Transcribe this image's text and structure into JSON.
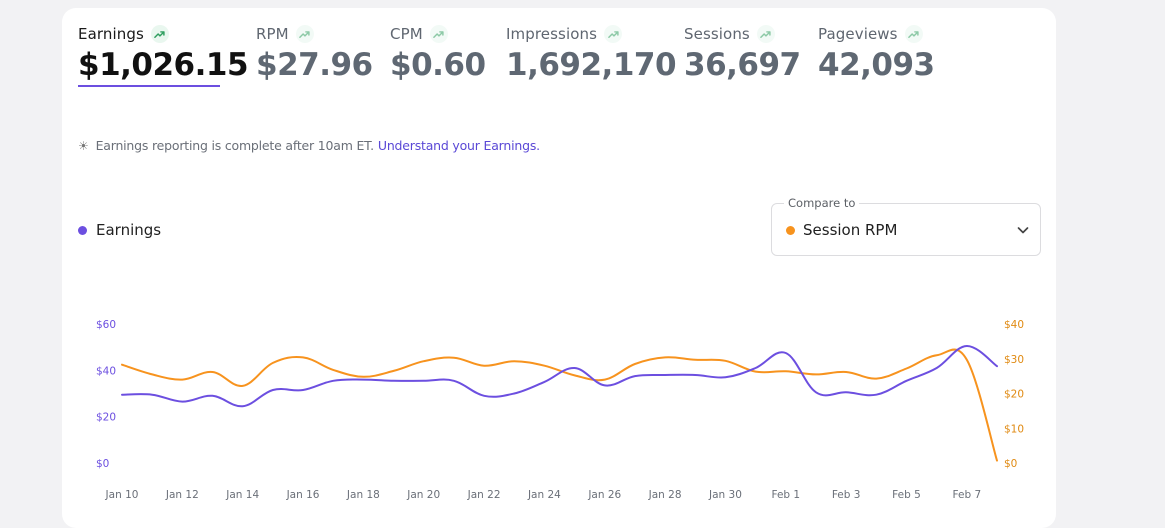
{
  "metrics": [
    {
      "label": "Earnings",
      "value": "$1,026.15",
      "active": true
    },
    {
      "label": "RPM",
      "value": "$27.96",
      "active": false
    },
    {
      "label": "CPM",
      "value": "$0.60",
      "active": false
    },
    {
      "label": "Impressions",
      "value": "1,692,170",
      "active": false
    },
    {
      "label": "Sessions",
      "value": "36,697",
      "active": false
    },
    {
      "label": "Pageviews",
      "value": "42,093",
      "active": false
    }
  ],
  "note": {
    "text": "Earnings reporting is complete after 10am ET.",
    "link": "Understand your Earnings."
  },
  "legend": {
    "label": "Earnings",
    "color": "#6c4fe0"
  },
  "compare": {
    "title": "Compare to",
    "selected": "Session RPM",
    "color": "#f7931e"
  },
  "chart_data": {
    "type": "line",
    "x_ticks": [
      "Jan 10",
      "Jan 12",
      "Jan 14",
      "Jan 16",
      "Jan 18",
      "Jan 20",
      "Jan 22",
      "Jan 24",
      "Jan 26",
      "Jan 28",
      "Jan 30",
      "Feb 1",
      "Feb 3",
      "Feb 5",
      "Feb 7"
    ],
    "x": [
      "Jan 10",
      "Jan 11",
      "Jan 12",
      "Jan 13",
      "Jan 14",
      "Jan 15",
      "Jan 16",
      "Jan 17",
      "Jan 18",
      "Jan 19",
      "Jan 20",
      "Jan 21",
      "Jan 22",
      "Jan 23",
      "Jan 24",
      "Jan 25",
      "Jan 26",
      "Jan 27",
      "Jan 28",
      "Jan 29",
      "Jan 30",
      "Jan 31",
      "Feb 1",
      "Feb 2",
      "Feb 3",
      "Feb 4",
      "Feb 5",
      "Feb 6",
      "Feb 7",
      "Feb 8"
    ],
    "left_ticks": [
      "$0",
      "$20",
      "$40",
      "$60"
    ],
    "right_ticks": [
      "$0",
      "$10",
      "$20",
      "$30",
      "$40"
    ],
    "ylim_left": [
      0,
      60
    ],
    "ylim_right": [
      0,
      40
    ],
    "series": [
      {
        "name": "Earnings",
        "axis": "left",
        "color": "#6c4fe0",
        "values": [
          29.5,
          29.5,
          26.5,
          29,
          24.5,
          31.5,
          31.5,
          35.5,
          36,
          35.5,
          35.5,
          35.5,
          29,
          30,
          35,
          41,
          33.5,
          37.5,
          38,
          38,
          37,
          41,
          47.5,
          30.5,
          30.5,
          29.5,
          35.5,
          41,
          50.5,
          41.8
        ]
      },
      {
        "name": "Session RPM",
        "axis": "right",
        "color": "#f7931e",
        "values": [
          28.3,
          25.5,
          24,
          26.2,
          22.2,
          28.8,
          30.4,
          26.8,
          24.8,
          26.5,
          29.3,
          30.3,
          28,
          29.3,
          28,
          25.2,
          24,
          28.5,
          30.4,
          29.7,
          29.4,
          26.3,
          26.4,
          25.5,
          26.2,
          24.3,
          27.2,
          31,
          29.7,
          0.7
        ]
      }
    ],
    "grid": false
  }
}
